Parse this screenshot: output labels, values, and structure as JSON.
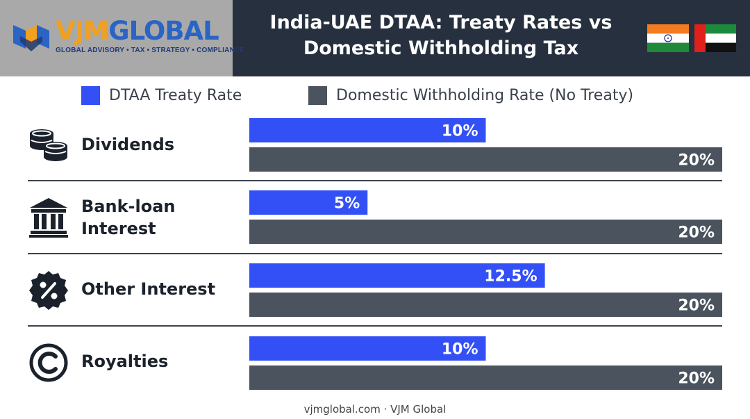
{
  "header": {
    "logo_text_part1": "VJM",
    "logo_text_part2": "GLOBAL",
    "logo_tagline": "GLOBAL ADVISORY • TAX • STRATEGY • COMPLIANCE",
    "title_line1": "India-UAE DTAA: Treaty Rates vs",
    "title_line2": "Domestic Withholding Tax"
  },
  "flags": [
    "india-flag",
    "uae-flag"
  ],
  "colors": {
    "treaty": "#3350f6",
    "domestic": "#4a535e",
    "header_bg": "#27303e",
    "logo_bg": "#a9a9a9"
  },
  "chart_data": {
    "type": "bar",
    "orientation": "horizontal",
    "title": "India-UAE DTAA: Treaty Rates vs Domestic Withholding Tax",
    "categories": [
      "Dividends",
      "Bank-loan Interest",
      "Other Interest",
      "Royalties"
    ],
    "category_lines": [
      [
        "Dividends"
      ],
      [
        "Bank-loan",
        "Interest"
      ],
      [
        "Other Interest"
      ],
      [
        "Royalties"
      ]
    ],
    "category_icons": [
      "coins-icon",
      "bank-icon",
      "percent-badge-icon",
      "copyright-icon"
    ],
    "series": [
      {
        "name": "DTAA Treaty Rate",
        "values": [
          10,
          5,
          12.5,
          10
        ],
        "labels": [
          "10%",
          "5%",
          "12.5%",
          "10%"
        ]
      },
      {
        "name": "Domestic Withholding Rate (No Treaty)",
        "values": [
          20,
          20,
          20,
          20
        ],
        "labels": [
          "20%",
          "20%",
          "20%",
          "20%"
        ]
      }
    ],
    "legend_position": "top",
    "grid": false
  },
  "footer": {
    "text": "vjmglobal.com · VJM Global"
  }
}
